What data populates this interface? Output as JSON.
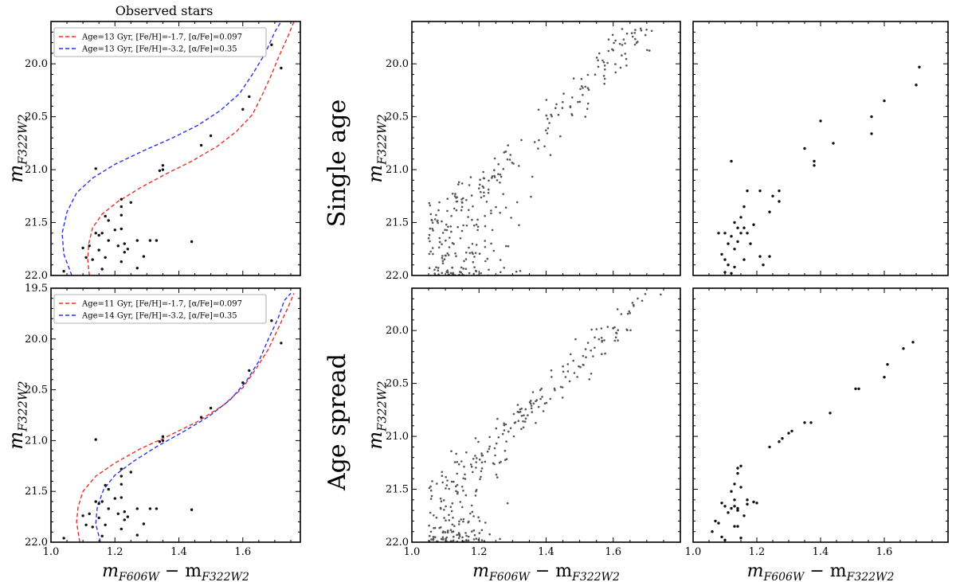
{
  "figure": {
    "observed_title": "Observed stars",
    "row_titles": [
      "Single age",
      "Age spread"
    ],
    "xlabel": "m_F606W − m_F322W2",
    "ylabel": "m_F322W2"
  },
  "chart_data": [
    {
      "id": "observed-top",
      "type": "scatter",
      "title": "Observed stars",
      "xlim": [
        1.0,
        1.78
      ],
      "ylim": [
        22.0,
        19.6
      ],
      "yticks": [
        "20.0",
        "20.5",
        "21.0",
        "21.5",
        "22.0"
      ],
      "xticks": [],
      "ylabel": "m_F322W2",
      "legend": "top-left",
      "curves": [
        {
          "name": "Age=13 Gyr, [Fe/H]=-1.7, [α/Fe]=0.097",
          "color": "#e8302a",
          "points": [
            [
              1.12,
              22.0
            ],
            [
              1.115,
              21.85
            ],
            [
              1.118,
              21.7
            ],
            [
              1.13,
              21.55
            ],
            [
              1.16,
              21.42
            ],
            [
              1.21,
              21.3
            ],
            [
              1.28,
              21.17
            ],
            [
              1.36,
              21.04
            ],
            [
              1.44,
              20.92
            ],
            [
              1.52,
              20.78
            ],
            [
              1.58,
              20.64
            ],
            [
              1.63,
              20.48
            ],
            [
              1.66,
              20.3
            ],
            [
              1.69,
              20.1
            ],
            [
              1.71,
              19.95
            ],
            [
              1.74,
              19.75
            ],
            [
              1.76,
              19.6
            ]
          ]
        },
        {
          "name": "Age=13 Gyr, [Fe/H]=-3.2, [α/Fe]=0.35",
          "color": "#2a35e0",
          "points": [
            [
              1.065,
              22.0
            ],
            [
              1.04,
              21.8
            ],
            [
              1.035,
              21.6
            ],
            [
              1.05,
              21.4
            ],
            [
              1.08,
              21.22
            ],
            [
              1.13,
              21.08
            ],
            [
              1.2,
              20.95
            ],
            [
              1.29,
              20.82
            ],
            [
              1.38,
              20.7
            ],
            [
              1.46,
              20.58
            ],
            [
              1.53,
              20.44
            ],
            [
              1.59,
              20.28
            ],
            [
              1.63,
              20.1
            ],
            [
              1.67,
              19.9
            ],
            [
              1.7,
              19.7
            ],
            [
              1.72,
              19.6
            ]
          ]
        }
      ],
      "points": [
        [
          1.72,
          20.04
        ],
        [
          1.69,
          19.82
        ],
        [
          1.62,
          20.31
        ],
        [
          1.6,
          20.43
        ],
        [
          1.5,
          20.68
        ],
        [
          1.47,
          20.77
        ],
        [
          1.35,
          20.96
        ],
        [
          1.35,
          21.0
        ],
        [
          1.34,
          21.01
        ],
        [
          1.14,
          20.99
        ],
        [
          1.25,
          21.31
        ],
        [
          1.22,
          21.28
        ],
        [
          1.22,
          21.35
        ],
        [
          1.17,
          21.44
        ],
        [
          1.22,
          21.43
        ],
        [
          1.18,
          21.48
        ],
        [
          1.2,
          21.57
        ],
        [
          1.22,
          21.56
        ],
        [
          1.16,
          21.6
        ],
        [
          1.14,
          21.6
        ],
        [
          1.15,
          21.62
        ],
        [
          1.18,
          21.67
        ],
        [
          1.27,
          21.67
        ],
        [
          1.31,
          21.67
        ],
        [
          1.33,
          21.67
        ],
        [
          1.44,
          21.68
        ],
        [
          1.23,
          21.7
        ],
        [
          1.21,
          21.72
        ],
        [
          1.24,
          21.75
        ],
        [
          1.12,
          21.72
        ],
        [
          1.1,
          21.74
        ],
        [
          1.15,
          21.76
        ],
        [
          1.29,
          21.82
        ],
        [
          1.17,
          21.83
        ],
        [
          1.11,
          21.83
        ],
        [
          1.13,
          21.85
        ],
        [
          1.22,
          21.87
        ],
        [
          1.23,
          21.78
        ],
        [
          1.04,
          21.96
        ],
        [
          1.16,
          21.94
        ],
        [
          1.27,
          21.93
        ]
      ]
    },
    {
      "id": "observed-bottom",
      "type": "scatter",
      "xlim": [
        1.0,
        1.78
      ],
      "ylim": [
        22.0,
        19.5
      ],
      "yticks": [
        "19.5",
        "20.0",
        "20.5",
        "21.0",
        "21.5",
        "22.0"
      ],
      "xticks": [
        "1.0",
        "1.2",
        "1.4",
        "1.6"
      ],
      "xlabel": "m_F606W − m_F322W2",
      "ylabel": "m_F322W2",
      "legend": "top-left",
      "curves": [
        {
          "name": "Age=11 Gyr, [Fe/H]=-1.7, [α/Fe]=0.097",
          "color": "#e8302a",
          "points": [
            [
              1.09,
              22.0
            ],
            [
              1.08,
              21.8
            ],
            [
              1.085,
              21.65
            ],
            [
              1.1,
              21.5
            ],
            [
              1.14,
              21.35
            ],
            [
              1.2,
              21.22
            ],
            [
              1.28,
              21.08
            ],
            [
              1.37,
              20.95
            ],
            [
              1.46,
              20.81
            ],
            [
              1.54,
              20.65
            ],
            [
              1.6,
              20.48
            ],
            [
              1.64,
              20.3
            ],
            [
              1.68,
              20.1
            ],
            [
              1.71,
              19.9
            ],
            [
              1.74,
              19.7
            ],
            [
              1.76,
              19.55
            ]
          ]
        },
        {
          "name": "Age=14 Gyr, [Fe/H]=-3.2, [α/Fe]=0.35",
          "color": "#2a35e0",
          "points": [
            [
              1.155,
              22.0
            ],
            [
              1.14,
              21.82
            ],
            [
              1.145,
              21.65
            ],
            [
              1.165,
              21.48
            ],
            [
              1.2,
              21.34
            ],
            [
              1.26,
              21.2
            ],
            [
              1.33,
              21.06
            ],
            [
              1.41,
              20.92
            ],
            [
              1.49,
              20.77
            ],
            [
              1.56,
              20.6
            ],
            [
              1.61,
              20.42
            ],
            [
              1.65,
              20.22
            ],
            [
              1.68,
              20.0
            ],
            [
              1.71,
              19.8
            ],
            [
              1.73,
              19.62
            ],
            [
              1.75,
              19.55
            ]
          ]
        }
      ],
      "points": [
        [
          1.72,
          20.04
        ],
        [
          1.69,
          19.82
        ],
        [
          1.62,
          20.31
        ],
        [
          1.6,
          20.43
        ],
        [
          1.5,
          20.68
        ],
        [
          1.47,
          20.77
        ],
        [
          1.35,
          20.96
        ],
        [
          1.35,
          21.0
        ],
        [
          1.34,
          21.01
        ],
        [
          1.14,
          20.99
        ],
        [
          1.25,
          21.31
        ],
        [
          1.22,
          21.28
        ],
        [
          1.22,
          21.35
        ],
        [
          1.17,
          21.44
        ],
        [
          1.22,
          21.43
        ],
        [
          1.18,
          21.48
        ],
        [
          1.2,
          21.57
        ],
        [
          1.22,
          21.56
        ],
        [
          1.16,
          21.6
        ],
        [
          1.14,
          21.6
        ],
        [
          1.15,
          21.62
        ],
        [
          1.18,
          21.67
        ],
        [
          1.27,
          21.67
        ],
        [
          1.31,
          21.67
        ],
        [
          1.33,
          21.67
        ],
        [
          1.44,
          21.68
        ],
        [
          1.23,
          21.7
        ],
        [
          1.21,
          21.72
        ],
        [
          1.24,
          21.75
        ],
        [
          1.12,
          21.72
        ],
        [
          1.1,
          21.74
        ],
        [
          1.15,
          21.76
        ],
        [
          1.29,
          21.82
        ],
        [
          1.17,
          21.83
        ],
        [
          1.11,
          21.83
        ],
        [
          1.13,
          21.85
        ],
        [
          1.22,
          21.87
        ],
        [
          1.23,
          21.78
        ],
        [
          1.04,
          21.96
        ],
        [
          1.16,
          21.94
        ],
        [
          1.27,
          21.93
        ]
      ]
    },
    {
      "id": "single-age-full",
      "type": "scatter",
      "row": "Single age",
      "xlim": [
        1.0,
        1.8
      ],
      "ylim": [
        22.0,
        19.6
      ],
      "yticks": [
        "20.0",
        "20.5",
        "21.0",
        "21.5",
        "22.0"
      ],
      "xticks": [],
      "ylabel": "m_F322W2",
      "generated": {
        "n": 300,
        "seed": 11,
        "model": "single",
        "color": "#555555"
      }
    },
    {
      "id": "single-age-sparse",
      "type": "scatter",
      "row": "Single age",
      "xlim": [
        1.0,
        1.8
      ],
      "ylim": [
        22.0,
        19.6
      ],
      "xticks": [],
      "points": [
        [
          1.71,
          20.03
        ],
        [
          1.7,
          20.2
        ],
        [
          1.6,
          20.35
        ],
        [
          1.56,
          20.5
        ],
        [
          1.56,
          20.66
        ],
        [
          1.4,
          20.54
        ],
        [
          1.44,
          20.75
        ],
        [
          1.35,
          20.8
        ],
        [
          1.38,
          20.92
        ],
        [
          1.38,
          20.96
        ],
        [
          1.12,
          20.92
        ],
        [
          1.17,
          21.2
        ],
        [
          1.21,
          21.2
        ],
        [
          1.27,
          21.2
        ],
        [
          1.25,
          21.25
        ],
        [
          1.27,
          21.3
        ],
        [
          1.24,
          21.4
        ],
        [
          1.16,
          21.35
        ],
        [
          1.15,
          21.45
        ],
        [
          1.13,
          21.5
        ],
        [
          1.14,
          21.55
        ],
        [
          1.1,
          21.6
        ],
        [
          1.08,
          21.6
        ],
        [
          1.12,
          21.63
        ],
        [
          1.15,
          21.6
        ],
        [
          1.11,
          21.7
        ],
        [
          1.13,
          21.75
        ],
        [
          1.14,
          21.68
        ],
        [
          1.09,
          21.8
        ],
        [
          1.1,
          21.85
        ],
        [
          1.11,
          21.9
        ],
        [
          1.13,
          21.92
        ],
        [
          1.16,
          21.85
        ],
        [
          1.21,
          21.82
        ],
        [
          1.22,
          21.9
        ],
        [
          1.24,
          21.82
        ],
        [
          1.12,
          21.98
        ],
        [
          1.1,
          21.97
        ],
        [
          1.18,
          21.7
        ],
        [
          1.17,
          21.6
        ],
        [
          1.16,
          21.55
        ],
        [
          1.19,
          21.52
        ]
      ]
    },
    {
      "id": "age-spread-full",
      "type": "scatter",
      "row": "Age spread",
      "xlim": [
        1.0,
        1.8
      ],
      "ylim": [
        22.0,
        19.6
      ],
      "yticks": [
        "20.0",
        "20.5",
        "21.0",
        "21.5",
        "22.0"
      ],
      "xticks": [
        "1.0",
        "1.2",
        "1.4",
        "1.6"
      ],
      "xlabel": "m_F606W − m_F322W2",
      "ylabel": "m_F322W2",
      "generated": {
        "n": 300,
        "seed": 23,
        "model": "spread",
        "color": "#555555"
      }
    },
    {
      "id": "age-spread-sparse",
      "type": "scatter",
      "row": "Age spread",
      "xlim": [
        1.0,
        1.8
      ],
      "ylim": [
        22.0,
        19.6
      ],
      "xticks": [
        "1.0",
        "1.2",
        "1.4",
        "1.6"
      ],
      "xlabel": "m_F606W − m_F322W2",
      "points": [
        [
          1.69,
          20.11
        ],
        [
          1.66,
          20.17
        ],
        [
          1.61,
          20.32
        ],
        [
          1.6,
          20.44
        ],
        [
          1.52,
          20.55
        ],
        [
          1.51,
          20.55
        ],
        [
          1.43,
          20.78
        ],
        [
          1.37,
          20.87
        ],
        [
          1.35,
          20.87
        ],
        [
          1.31,
          20.95
        ],
        [
          1.3,
          20.97
        ],
        [
          1.28,
          21.02
        ],
        [
          1.27,
          21.05
        ],
        [
          1.24,
          21.1
        ],
        [
          1.15,
          21.28
        ],
        [
          1.14,
          21.3
        ],
        [
          1.14,
          21.35
        ],
        [
          1.13,
          21.45
        ],
        [
          1.15,
          21.48
        ],
        [
          1.12,
          21.52
        ],
        [
          1.13,
          21.6
        ],
        [
          1.17,
          21.6
        ],
        [
          1.19,
          21.62
        ],
        [
          1.2,
          21.63
        ],
        [
          1.09,
          21.63
        ],
        [
          1.1,
          21.66
        ],
        [
          1.12,
          21.68
        ],
        [
          1.13,
          21.66
        ],
        [
          1.14,
          21.7
        ],
        [
          1.11,
          21.72
        ],
        [
          1.16,
          21.75
        ],
        [
          1.07,
          21.8
        ],
        [
          1.08,
          21.82
        ],
        [
          1.14,
          21.85
        ],
        [
          1.13,
          21.85
        ],
        [
          1.09,
          21.95
        ],
        [
          1.1,
          21.98
        ],
        [
          1.15,
          21.96
        ],
        [
          1.06,
          21.9
        ],
        [
          1.14,
          21.68
        ],
        [
          1.17,
          21.64
        ]
      ]
    }
  ]
}
